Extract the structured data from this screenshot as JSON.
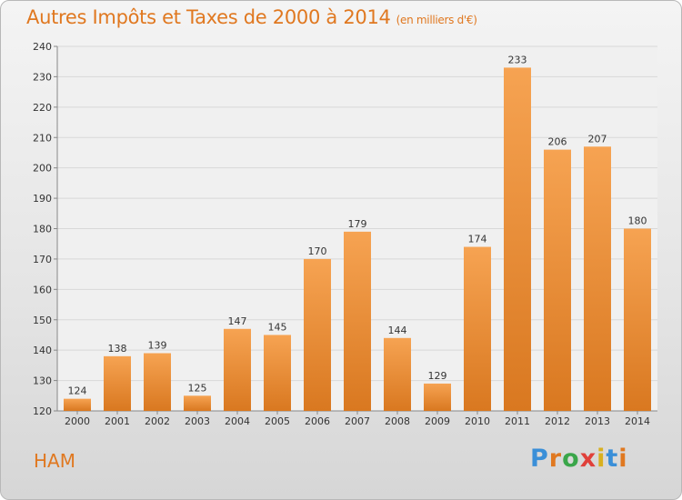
{
  "header": {
    "title": "Autres Impôts et Taxes de 2000 à 2014",
    "unit": "(en milliers d'€)"
  },
  "footer": {
    "location": "HAM",
    "logo_letters": [
      "P",
      "r",
      "o",
      "x",
      "i",
      "t",
      "i"
    ],
    "logo_colors": [
      "#3a8fd8",
      "#e07820",
      "#3aa64a",
      "#e0403a",
      "#d8b020",
      "#3a8fd8",
      "#e07820"
    ]
  },
  "colors": {
    "bar_top": "#f6a352",
    "bar_bottom": "#d97820",
    "accent": "#e07820"
  },
  "chart_data": {
    "type": "bar",
    "title": "Autres Impôts et Taxes de 2000 à 2014",
    "xlabel": "",
    "ylabel": "",
    "categories": [
      "2000",
      "2001",
      "2002",
      "2003",
      "2004",
      "2005",
      "2006",
      "2007",
      "2008",
      "2009",
      "2010",
      "2011",
      "2012",
      "2013",
      "2014"
    ],
    "values": [
      124,
      138,
      139,
      125,
      147,
      145,
      170,
      179,
      144,
      129,
      174,
      233,
      206,
      207,
      180
    ],
    "ylim": [
      120,
      240
    ],
    "yticks": [
      120,
      130,
      140,
      150,
      160,
      170,
      180,
      190,
      200,
      210,
      220,
      230,
      240
    ],
    "grid": true,
    "data_labels": true
  }
}
